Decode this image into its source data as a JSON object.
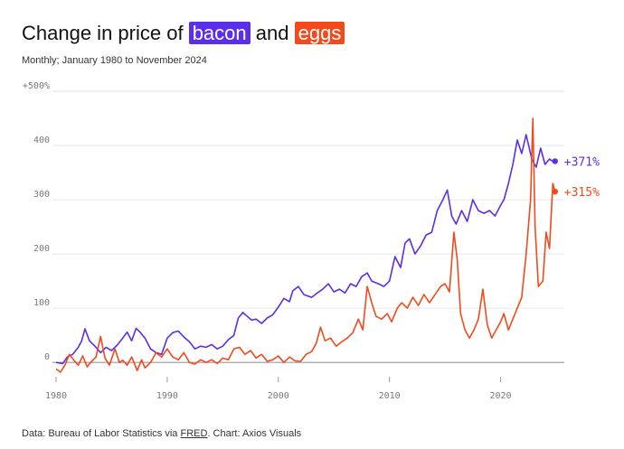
{
  "title": {
    "prefix": "Change in price of",
    "series1": "bacon",
    "joiner": "and",
    "series2": "eggs"
  },
  "subtitle": "Monthly; January 1980 to November 2024",
  "footer": {
    "prefix": "Data: Bureau of Labor Statistics via ",
    "link": "FRED",
    "suffix": ". Chart: Axios Visuals"
  },
  "colors": {
    "bacon": "#5b2ee8",
    "eggs": "#f04a1d",
    "grid": "#e6e6e6",
    "baseline": "#999999"
  },
  "chart_data": {
    "type": "line",
    "title": "Change in price of bacon and eggs",
    "subtitle": "Monthly; January 1980 to November 2024",
    "xlabel": "",
    "ylabel": "",
    "xlim": [
      1980,
      2025
    ],
    "ylim": [
      -30,
      500
    ],
    "x_ticks": [
      1980,
      1990,
      2000,
      2010,
      2020
    ],
    "y_ticks": [
      {
        "value": 0,
        "label": "0"
      },
      {
        "value": 100,
        "label": "100"
      },
      {
        "value": 200,
        "label": "200"
      },
      {
        "value": 300,
        "label": "300"
      },
      {
        "value": 400,
        "label": "400"
      },
      {
        "value": 500,
        "label": "+500%"
      }
    ],
    "grid": true,
    "series": [
      {
        "name": "bacon",
        "end_label": "+371%",
        "points": [
          [
            1980.0,
            0
          ],
          [
            1980.6,
            -2
          ],
          [
            1981.0,
            10
          ],
          [
            1981.5,
            15
          ],
          [
            1982.0,
            28
          ],
          [
            1982.3,
            40
          ],
          [
            1982.6,
            62
          ],
          [
            1983.0,
            40
          ],
          [
            1983.5,
            30
          ],
          [
            1984.0,
            18
          ],
          [
            1984.5,
            28
          ],
          [
            1985.0,
            22
          ],
          [
            1985.5,
            32
          ],
          [
            1986.0,
            45
          ],
          [
            1986.4,
            56
          ],
          [
            1986.8,
            40
          ],
          [
            1987.2,
            63
          ],
          [
            1987.6,
            55
          ],
          [
            1988.0,
            45
          ],
          [
            1988.5,
            25
          ],
          [
            1989.0,
            18
          ],
          [
            1989.5,
            15
          ],
          [
            1990.0,
            45
          ],
          [
            1990.5,
            55
          ],
          [
            1991.0,
            58
          ],
          [
            1991.5,
            47
          ],
          [
            1992.0,
            38
          ],
          [
            1992.5,
            25
          ],
          [
            1993.0,
            30
          ],
          [
            1993.5,
            28
          ],
          [
            1994.0,
            33
          ],
          [
            1994.5,
            25
          ],
          [
            1995.0,
            30
          ],
          [
            1995.5,
            42
          ],
          [
            1996.0,
            50
          ],
          [
            1996.4,
            82
          ],
          [
            1996.8,
            92
          ],
          [
            1997.2,
            85
          ],
          [
            1997.6,
            78
          ],
          [
            1998.0,
            80
          ],
          [
            1998.5,
            72
          ],
          [
            1999.0,
            82
          ],
          [
            1999.5,
            88
          ],
          [
            2000.0,
            102
          ],
          [
            2000.5,
            118
          ],
          [
            2001.0,
            112
          ],
          [
            2001.3,
            132
          ],
          [
            2001.8,
            140
          ],
          [
            2002.3,
            125
          ],
          [
            2003.0,
            120
          ],
          [
            2003.5,
            128
          ],
          [
            2004.0,
            135
          ],
          [
            2004.5,
            145
          ],
          [
            2005.0,
            130
          ],
          [
            2005.5,
            135
          ],
          [
            2006.0,
            128
          ],
          [
            2006.5,
            145
          ],
          [
            2007.0,
            140
          ],
          [
            2007.5,
            158
          ],
          [
            2008.0,
            165
          ],
          [
            2008.4,
            150
          ],
          [
            2009.0,
            145
          ],
          [
            2009.5,
            140
          ],
          [
            2010.0,
            150
          ],
          [
            2010.5,
            195
          ],
          [
            2011.0,
            175
          ],
          [
            2011.4,
            220
          ],
          [
            2011.8,
            228
          ],
          [
            2012.3,
            200
          ],
          [
            2012.8,
            215
          ],
          [
            2013.3,
            235
          ],
          [
            2013.8,
            240
          ],
          [
            2014.3,
            280
          ],
          [
            2014.8,
            300
          ],
          [
            2015.2,
            318
          ],
          [
            2015.6,
            270
          ],
          [
            2016.0,
            255
          ],
          [
            2016.5,
            280
          ],
          [
            2017.0,
            260
          ],
          [
            2017.5,
            300
          ],
          [
            2018.0,
            280
          ],
          [
            2018.5,
            275
          ],
          [
            2019.0,
            280
          ],
          [
            2019.5,
            270
          ],
          [
            2020.0,
            290
          ],
          [
            2020.3,
            300
          ],
          [
            2020.7,
            330
          ],
          [
            2021.1,
            365
          ],
          [
            2021.5,
            410
          ],
          [
            2021.9,
            385
          ],
          [
            2022.3,
            420
          ],
          [
            2022.8,
            375
          ],
          [
            2023.2,
            360
          ],
          [
            2023.6,
            395
          ],
          [
            2024.0,
            365
          ],
          [
            2024.4,
            375
          ],
          [
            2024.8,
            369
          ],
          [
            2024.9,
            371
          ]
        ]
      },
      {
        "name": "eggs",
        "end_label": "+315%",
        "points": [
          [
            1980.0,
            -12
          ],
          [
            1980.4,
            -18
          ],
          [
            1980.8,
            -5
          ],
          [
            1981.2,
            15
          ],
          [
            1981.6,
            4
          ],
          [
            1982.0,
            -5
          ],
          [
            1982.4,
            12
          ],
          [
            1982.8,
            -8
          ],
          [
            1983.2,
            2
          ],
          [
            1983.6,
            10
          ],
          [
            1984.0,
            48
          ],
          [
            1984.4,
            8
          ],
          [
            1984.8,
            -5
          ],
          [
            1985.3,
            25
          ],
          [
            1985.7,
            0
          ],
          [
            1986.0,
            4
          ],
          [
            1986.4,
            -5
          ],
          [
            1986.8,
            10
          ],
          [
            1987.3,
            -15
          ],
          [
            1987.7,
            5
          ],
          [
            1988.0,
            -10
          ],
          [
            1988.5,
            0
          ],
          [
            1989.0,
            18
          ],
          [
            1989.5,
            10
          ],
          [
            1990.0,
            25
          ],
          [
            1990.5,
            10
          ],
          [
            1991.0,
            5
          ],
          [
            1991.5,
            18
          ],
          [
            1992.0,
            0
          ],
          [
            1992.5,
            -3
          ],
          [
            1993.0,
            5
          ],
          [
            1993.5,
            0
          ],
          [
            1994.0,
            5
          ],
          [
            1994.5,
            -2
          ],
          [
            1995.0,
            8
          ],
          [
            1995.5,
            5
          ],
          [
            1996.0,
            25
          ],
          [
            1996.5,
            28
          ],
          [
            1997.0,
            15
          ],
          [
            1997.5,
            22
          ],
          [
            1998.0,
            8
          ],
          [
            1998.5,
            15
          ],
          [
            1999.0,
            2
          ],
          [
            1999.5,
            5
          ],
          [
            2000.0,
            12
          ],
          [
            2000.5,
            0
          ],
          [
            2001.0,
            10
          ],
          [
            2001.5,
            3
          ],
          [
            2002.0,
            2
          ],
          [
            2002.5,
            15
          ],
          [
            2003.0,
            20
          ],
          [
            2003.4,
            35
          ],
          [
            2003.8,
            65
          ],
          [
            2004.2,
            40
          ],
          [
            2004.7,
            45
          ],
          [
            2005.2,
            30
          ],
          [
            2005.7,
            38
          ],
          [
            2006.2,
            45
          ],
          [
            2006.7,
            55
          ],
          [
            2007.2,
            80
          ],
          [
            2007.6,
            60
          ],
          [
            2008.0,
            140
          ],
          [
            2008.4,
            110
          ],
          [
            2008.8,
            85
          ],
          [
            2009.3,
            80
          ],
          [
            2009.8,
            90
          ],
          [
            2010.2,
            75
          ],
          [
            2010.7,
            100
          ],
          [
            2011.1,
            110
          ],
          [
            2011.6,
            100
          ],
          [
            2012.1,
            120
          ],
          [
            2012.6,
            105
          ],
          [
            2013.1,
            125
          ],
          [
            2013.6,
            110
          ],
          [
            2014.1,
            125
          ],
          [
            2014.6,
            140
          ],
          [
            2015.0,
            145
          ],
          [
            2015.4,
            130
          ],
          [
            2015.8,
            240
          ],
          [
            2016.1,
            190
          ],
          [
            2016.4,
            90
          ],
          [
            2016.8,
            60
          ],
          [
            2017.2,
            45
          ],
          [
            2017.6,
            60
          ],
          [
            2018.0,
            80
          ],
          [
            2018.4,
            135
          ],
          [
            2018.8,
            70
          ],
          [
            2019.2,
            45
          ],
          [
            2019.6,
            60
          ],
          [
            2020.0,
            75
          ],
          [
            2020.3,
            90
          ],
          [
            2020.7,
            60
          ],
          [
            2021.1,
            80
          ],
          [
            2021.5,
            100
          ],
          [
            2021.9,
            120
          ],
          [
            2022.3,
            200
          ],
          [
            2022.7,
            300
          ],
          [
            2022.9,
            450
          ],
          [
            2023.1,
            250
          ],
          [
            2023.4,
            140
          ],
          [
            2023.8,
            150
          ],
          [
            2024.1,
            240
          ],
          [
            2024.4,
            210
          ],
          [
            2024.7,
            330
          ],
          [
            2024.9,
            315
          ]
        ]
      }
    ]
  }
}
